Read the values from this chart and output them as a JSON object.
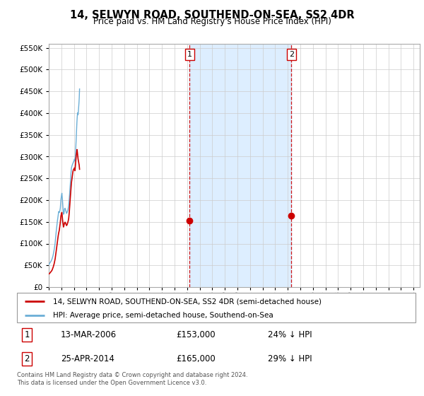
{
  "title": "14, SELWYN ROAD, SOUTHEND-ON-SEA, SS2 4DR",
  "subtitle": "Price paid vs. HM Land Registry's House Price Index (HPI)",
  "legend_line1": "14, SELWYN ROAD, SOUTHEND-ON-SEA, SS2 4DR (semi-detached house)",
  "legend_line2": "HPI: Average price, semi-detached house, Southend-on-Sea",
  "footnote": "Contains HM Land Registry data © Crown copyright and database right 2024.\nThis data is licensed under the Open Government Licence v3.0.",
  "sale1_date": "13-MAR-2006",
  "sale1_price": 153000,
  "sale1_label": "24% ↓ HPI",
  "sale2_date": "25-APR-2014",
  "sale2_price": 165000,
  "sale2_label": "29% ↓ HPI",
  "sale1_x": 2006.2,
  "sale2_x": 2014.3,
  "ylim": [
    0,
    560000
  ],
  "yticks": [
    0,
    50000,
    100000,
    150000,
    200000,
    250000,
    300000,
    350000,
    400000,
    450000,
    500000,
    550000
  ],
  "hpi_color": "#6baed6",
  "property_color": "#cc0000",
  "vline_color": "#cc0000",
  "grid_color": "#cccccc",
  "shade_color": "#ddeeff",
  "plot_bg": "#ffffff",
  "xlim_left": 1995.0,
  "xlim_right": 2024.5
}
